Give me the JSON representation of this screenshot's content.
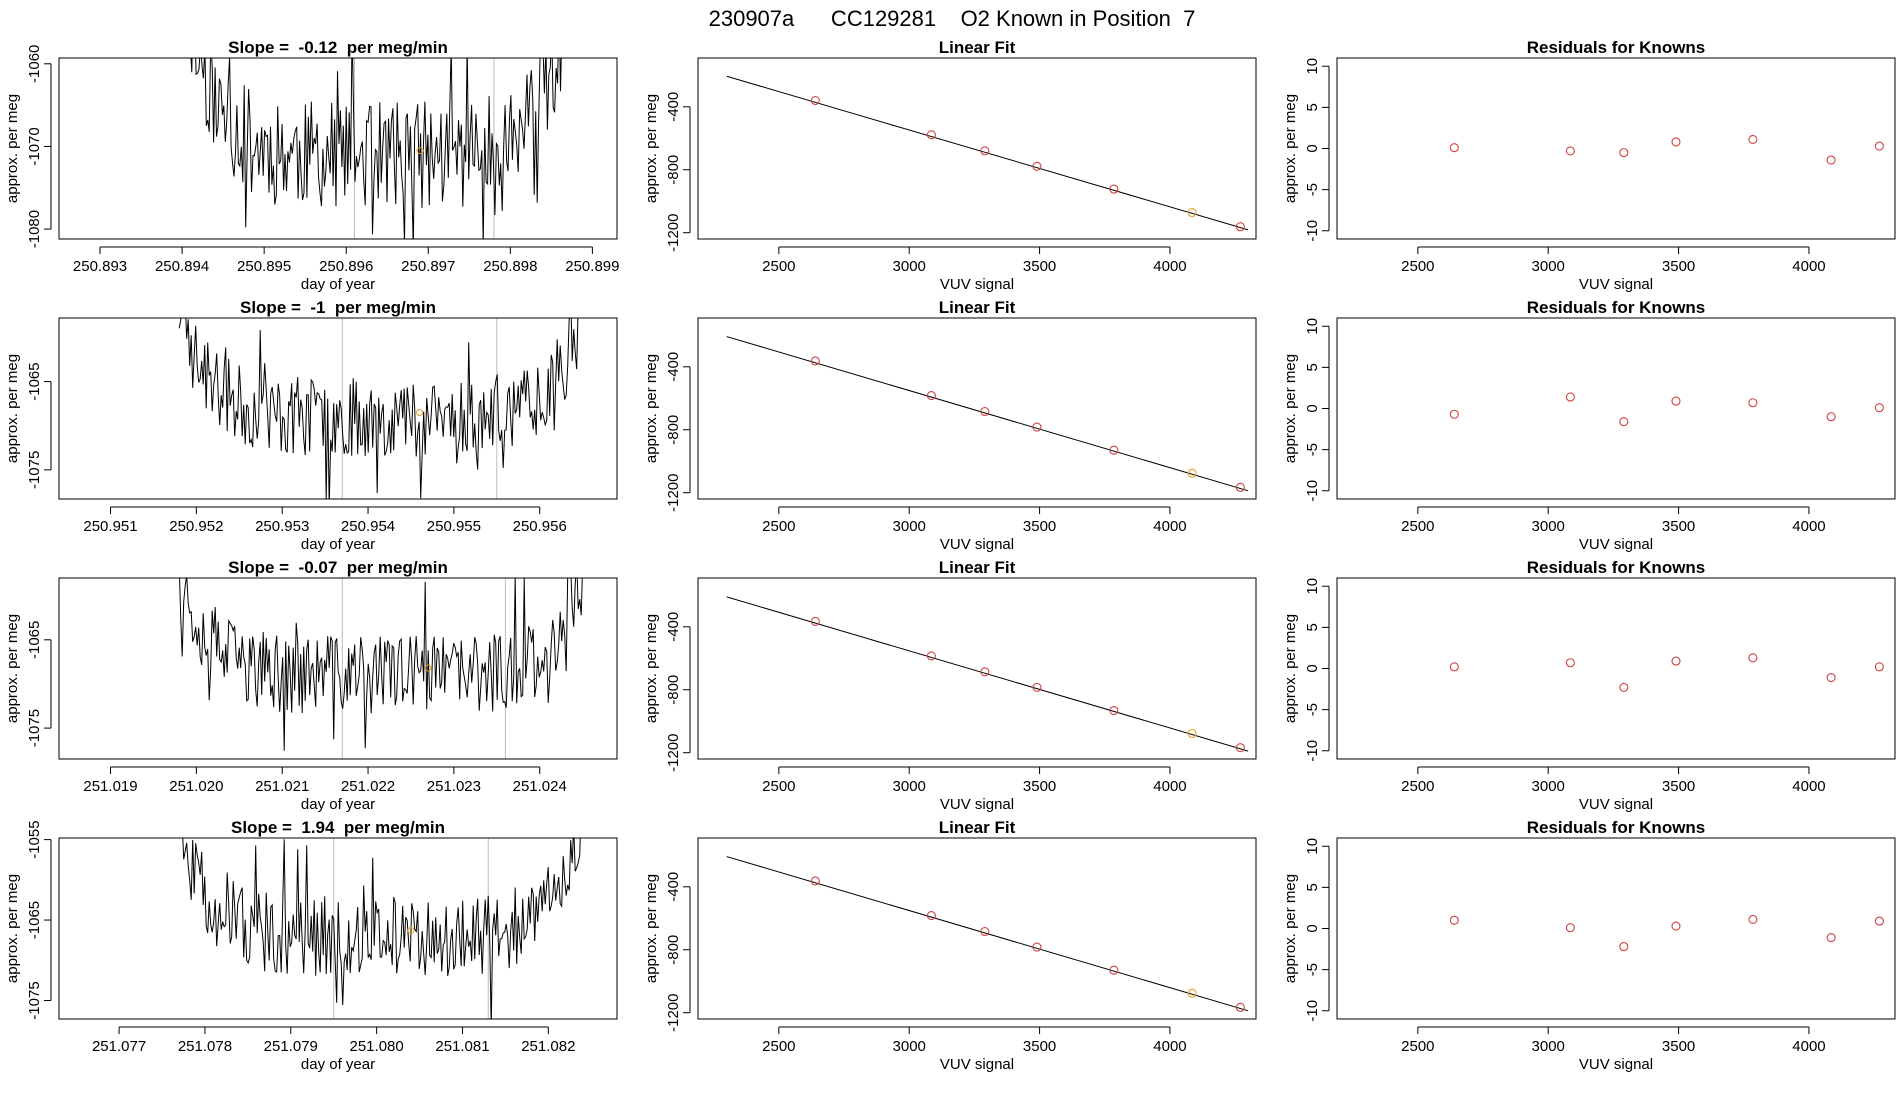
{
  "page_title": "230907a      CC129281    O2 Known in Position  7",
  "colors": {
    "trace": "#000000",
    "known_point": "#d04040",
    "highlight_point": "#e8a020",
    "fit_line": "#000000",
    "window_line": "#bbbbbb"
  },
  "chart_data": [
    {
      "type": "line",
      "row": 0,
      "title": "Slope =  -0.12  per meg/min",
      "xlabel": "day of year",
      "ylabel": "approx. per meg",
      "xlim": [
        250.8925,
        250.8993
      ],
      "ylim": [
        -1081.2,
        -1059.3
      ],
      "xticks": [
        "250.893",
        "250.894",
        "250.895",
        "250.896",
        "250.897",
        "250.898",
        "250.899"
      ],
      "yticks": [
        "-1060",
        "-1070",
        "-1080"
      ],
      "trace": {
        "x_start": 250.8941,
        "x_end": 250.8987,
        "n": 260,
        "center": -1071,
        "amplitude": 6.5,
        "seed": 11
      },
      "windows": [
        250.8961,
        250.8978
      ],
      "marker": {
        "x": 250.8969,
        "y": -1070.5
      }
    },
    {
      "type": "scatter",
      "row": 0,
      "title": "Linear Fit",
      "xlabel": "VUV signal",
      "ylabel": "approx. per meg",
      "xlim": [
        2190,
        4330
      ],
      "ylim": [
        -1240,
        -90
      ],
      "xticks": [
        "2500",
        "3000",
        "3500",
        "4000"
      ],
      "yticks": [
        "-400",
        "-800",
        "-1200"
      ],
      "points": [
        [
          2640,
          -360
        ],
        [
          3085,
          -578
        ],
        [
          3290,
          -680
        ],
        [
          3490,
          -778
        ],
        [
          3785,
          -923
        ],
        [
          4085,
          -1072
        ],
        [
          4270,
          -1162
        ]
      ],
      "highlight_index": 5,
      "fit": [
        [
          2300,
          -206
        ],
        [
          4300,
          -1182
        ]
      ]
    },
    {
      "type": "scatter",
      "row": 0,
      "title": "Residuals for Knowns",
      "xlabel": "VUV signal",
      "ylabel": "approx. per meg",
      "xlim": [
        2190,
        4330
      ],
      "ylim": [
        -11,
        11
      ],
      "xticks": [
        "2500",
        "3000",
        "3500",
        "4000"
      ],
      "yticks": [
        "10",
        "5",
        "0",
        "-5",
        "-10"
      ],
      "points": [
        [
          2640,
          0.1
        ],
        [
          3085,
          -0.3
        ],
        [
          3290,
          -0.5
        ],
        [
          3490,
          0.8
        ],
        [
          3785,
          1.1
        ],
        [
          4085,
          -1.4
        ],
        [
          4270,
          0.3
        ]
      ]
    },
    {
      "type": "line",
      "row": 1,
      "title": "Slope =  -1  per meg/min",
      "xlabel": "day of year",
      "ylabel": "approx. per meg",
      "xlim": [
        250.9504,
        250.9569
      ],
      "ylim": [
        -1078.3,
        -1057.8
      ],
      "xticks": [
        "250.951",
        "250.952",
        "250.953",
        "250.954",
        "250.955",
        "250.956"
      ],
      "yticks": [
        "-1065",
        "-1075"
      ],
      "trace": {
        "x_start": 250.9518,
        "x_end": 250.9565,
        "n": 270,
        "center": -1069,
        "amplitude": 4.5,
        "seed": 23
      },
      "windows": [
        250.9537,
        250.9555
      ],
      "marker": {
        "x": 250.9546,
        "y": -1068.5
      }
    },
    {
      "type": "scatter",
      "row": 1,
      "title": "Linear Fit",
      "xlabel": "VUV signal",
      "ylabel": "approx. per meg",
      "xlim": [
        2190,
        4330
      ],
      "ylim": [
        -1240,
        -90
      ],
      "xticks": [
        "2500",
        "3000",
        "3500",
        "4000"
      ],
      "yticks": [
        "-400",
        "-800",
        "-1200"
      ],
      "points": [
        [
          2640,
          -363
        ],
        [
          3085,
          -583
        ],
        [
          3290,
          -684
        ],
        [
          3490,
          -783
        ],
        [
          3785,
          -930
        ],
        [
          4085,
          -1076
        ],
        [
          4270,
          -1166
        ]
      ],
      "highlight_index": 5,
      "fit": [
        [
          2300,
          -208
        ],
        [
          4300,
          -1188
        ]
      ]
    },
    {
      "type": "scatter",
      "row": 1,
      "title": "Residuals for Knowns",
      "xlabel": "VUV signal",
      "ylabel": "approx. per meg",
      "xlim": [
        2190,
        4330
      ],
      "ylim": [
        -11,
        11
      ],
      "xticks": [
        "2500",
        "3000",
        "3500",
        "4000"
      ],
      "yticks": [
        "10",
        "5",
        "0",
        "-5",
        "-10"
      ],
      "points": [
        [
          2640,
          -0.7
        ],
        [
          3085,
          1.4
        ],
        [
          3290,
          -1.6
        ],
        [
          3490,
          0.9
        ],
        [
          3785,
          0.7
        ],
        [
          4085,
          -1.0
        ],
        [
          4270,
          0.1
        ]
      ]
    },
    {
      "type": "line",
      "row": 2,
      "title": "Slope =  -0.07  per meg/min",
      "xlabel": "day of year",
      "ylabel": "approx. per meg",
      "xlim": [
        251.0184,
        251.0249
      ],
      "ylim": [
        -1078.5,
        -1058
      ],
      "xticks": [
        "251.019",
        "251.020",
        "251.021",
        "251.022",
        "251.023",
        "251.024"
      ],
      "yticks": [
        "-1065",
        "-1075"
      ],
      "trace": {
        "x_start": 251.0198,
        "x_end": 251.0245,
        "n": 270,
        "center": -1069,
        "amplitude": 4.5,
        "seed": 37
      },
      "windows": [
        251.0217,
        251.0236
      ],
      "marker": {
        "x": 251.0227,
        "y": -1068.2
      }
    },
    {
      "type": "scatter",
      "row": 2,
      "title": "Linear Fit",
      "xlabel": "VUV signal",
      "ylabel": "approx. per meg",
      "xlim": [
        2190,
        4330
      ],
      "ylim": [
        -1240,
        -90
      ],
      "xticks": [
        "2500",
        "3000",
        "3500",
        "4000"
      ],
      "yticks": [
        "-400",
        "-800",
        "-1200"
      ],
      "points": [
        [
          2640,
          -366
        ],
        [
          3085,
          -585
        ],
        [
          3290,
          -686
        ],
        [
          3490,
          -785
        ],
        [
          3785,
          -932
        ],
        [
          4085,
          -1078
        ],
        [
          4270,
          -1168
        ]
      ],
      "highlight_index": 5,
      "fit": [
        [
          2300,
          -210
        ],
        [
          4300,
          -1190
        ]
      ]
    },
    {
      "type": "scatter",
      "row": 2,
      "title": "Residuals for Knowns",
      "xlabel": "VUV signal",
      "ylabel": "approx. per meg",
      "xlim": [
        2190,
        4330
      ],
      "ylim": [
        -11,
        11
      ],
      "xticks": [
        "2500",
        "3000",
        "3500",
        "4000"
      ],
      "yticks": [
        "10",
        "5",
        "0",
        "-5",
        "-10"
      ],
      "points": [
        [
          2640,
          0.2
        ],
        [
          3085,
          0.7
        ],
        [
          3290,
          -2.3
        ],
        [
          3490,
          0.9
        ],
        [
          3785,
          1.3
        ],
        [
          4085,
          -1.1
        ],
        [
          4270,
          0.2
        ]
      ]
    },
    {
      "type": "line",
      "row": 3,
      "title": "Slope =  1.94  per meg/min",
      "xlabel": "day of year",
      "ylabel": "approx. per meg",
      "xlim": [
        251.0763,
        251.0828
      ],
      "ylim": [
        -1077.3,
        -1054.8
      ],
      "xticks": [
        "251.077",
        "251.078",
        "251.079",
        "251.080",
        "251.081",
        "251.082"
      ],
      "yticks": [
        "-1055",
        "-1065",
        "-1075"
      ],
      "trace": {
        "x_start": 251.0777,
        "x_end": 251.0824,
        "n": 270,
        "center": -1067,
        "amplitude": 5,
        "seed": 51
      },
      "windows": [
        251.0795,
        251.0813
      ],
      "marker": {
        "x": 251.0804,
        "y": -1066.3
      }
    },
    {
      "type": "scatter",
      "row": 3,
      "title": "Linear Fit",
      "xlabel": "VUV signal",
      "ylabel": "approx. per meg",
      "xlim": [
        2190,
        4330
      ],
      "ylim": [
        -1240,
        -90
      ],
      "xticks": [
        "2500",
        "3000",
        "3500",
        "4000"
      ],
      "yticks": [
        "-400",
        "-800",
        "-1200"
      ],
      "points": [
        [
          2640,
          -363
        ],
        [
          3085,
          -583
        ],
        [
          3290,
          -684
        ],
        [
          3490,
          -783
        ],
        [
          3785,
          -930
        ],
        [
          4085,
          -1076
        ],
        [
          4270,
          -1166
        ]
      ],
      "highlight_index": 5,
      "fit": [
        [
          2300,
          -208
        ],
        [
          4300,
          -1188
        ]
      ]
    },
    {
      "type": "scatter",
      "row": 3,
      "title": "Residuals for Knowns",
      "xlabel": "VUV signal",
      "ylabel": "approx. per meg",
      "xlim": [
        2190,
        4330
      ],
      "ylim": [
        -11,
        11
      ],
      "xticks": [
        "2500",
        "3000",
        "3500",
        "4000"
      ],
      "yticks": [
        "10",
        "5",
        "0",
        "-5",
        "-10"
      ],
      "points": [
        [
          2640,
          1.0
        ],
        [
          3085,
          0.1
        ],
        [
          3290,
          -2.2
        ],
        [
          3490,
          0.3
        ],
        [
          3785,
          1.1
        ],
        [
          4085,
          -1.1
        ],
        [
          4270,
          0.9
        ]
      ]
    }
  ]
}
